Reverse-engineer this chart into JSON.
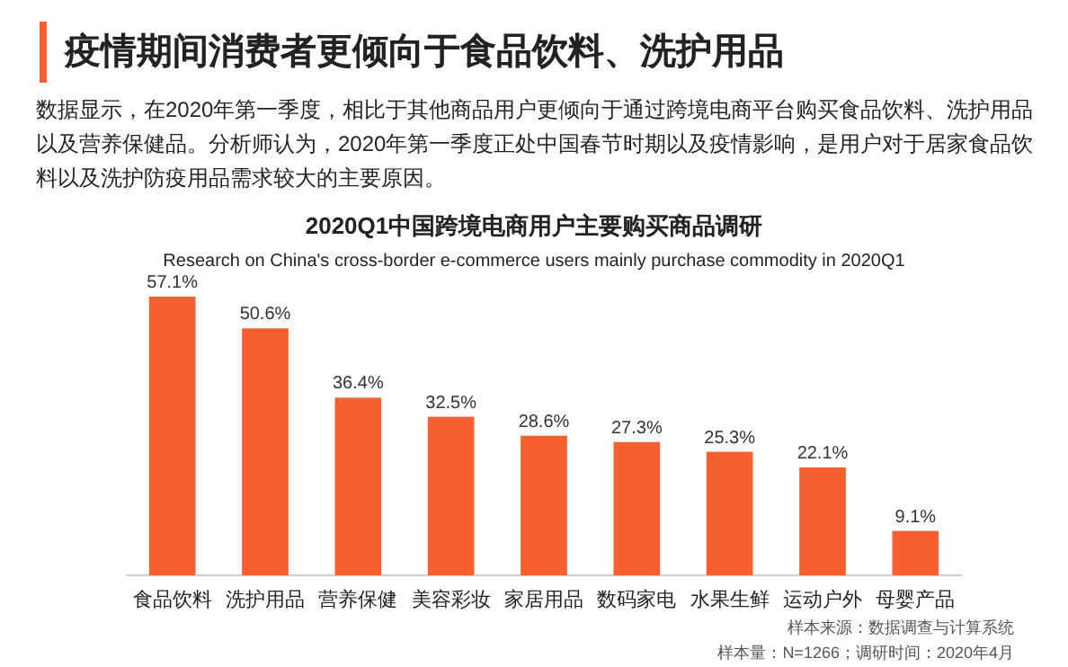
{
  "chart_data": {
    "type": "bar",
    "title": "2020Q1中国跨境电商用户主要购买商品调研",
    "subtitle": "Research on China's cross-border e-commerce users mainly purchase commodity in 2020Q1",
    "categories": [
      "食品饮料",
      "洗护用品",
      "营养保健",
      "美容彩妆",
      "家居用品",
      "数码家电",
      "水果生鲜",
      "运动户外",
      "母婴产品"
    ],
    "values": [
      57.1,
      50.6,
      36.4,
      32.5,
      28.6,
      27.3,
      25.3,
      22.1,
      9.1
    ],
    "value_labels": [
      "57.1%",
      "50.6%",
      "36.4%",
      "32.5%",
      "28.6%",
      "27.3%",
      "25.3%",
      "22.1%",
      "9.1%"
    ],
    "color": "#f4602f",
    "annotations": [
      "疫情期间消费者更倾向于食品饮料、洗护用品",
      "数据显示，在2020年第一季度，相比于其他商品用户更倾向于通过跨境电商平台购买食品饮料、洗护用品以及营养保健品。分析师认为，2020年第一季度正处中国春节时期以及疫情影响，是用户对于居家食品饮料以及洗护防疫用品需求较大的主要原因。",
      "样本来源：数据调查与计算系统",
      "样本量：N=1266；调研时间：2020年4月"
    ]
  }
}
